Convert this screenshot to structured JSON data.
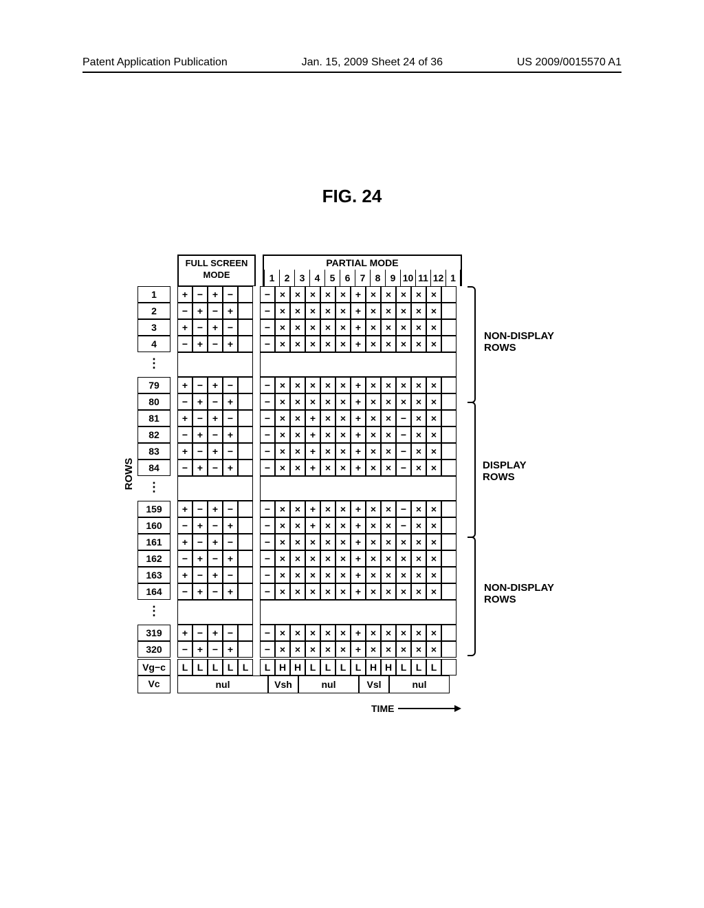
{
  "header": {
    "left": "Patent Application Publication",
    "center": "Jan. 15, 2009  Sheet 24 of 36",
    "right": "US 2009/0015570 A1"
  },
  "figure": {
    "title": "FIG. 24",
    "mode_headers": {
      "full_screen": "FULL SCREEN MODE",
      "partial": "PARTIAL MODE"
    },
    "full_screen_cols": 5,
    "partial_cols": [
      "1",
      "2",
      "3",
      "4",
      "5",
      "6",
      "7",
      "8",
      "9",
      "10",
      "11",
      "12",
      "1"
    ],
    "rows_label": "ROWS",
    "section_labels": {
      "nondisplay_top": "NON-DISPLAY ROWS",
      "display": "DISPLAY ROWS",
      "nondisplay_bottom": "NON-DISPLAY ROWS"
    },
    "rows": [
      {
        "label": "1",
        "fs": [
          "+",
          "−",
          "+",
          "−",
          ""
        ],
        "pm": [
          "−",
          "×",
          "×",
          "×",
          "×",
          "×",
          "+",
          "×",
          "×",
          "×",
          "×",
          "×",
          ""
        ]
      },
      {
        "label": "2",
        "fs": [
          "−",
          "+",
          "−",
          "+",
          ""
        ],
        "pm": [
          "−",
          "×",
          "×",
          "×",
          "×",
          "×",
          "+",
          "×",
          "×",
          "×",
          "×",
          "×",
          ""
        ]
      },
      {
        "label": "3",
        "fs": [
          "+",
          "−",
          "+",
          "−",
          ""
        ],
        "pm": [
          "−",
          "×",
          "×",
          "×",
          "×",
          "×",
          "+",
          "×",
          "×",
          "×",
          "×",
          "×",
          ""
        ]
      },
      {
        "label": "4",
        "fs": [
          "−",
          "+",
          "−",
          "+",
          ""
        ],
        "pm": [
          "−",
          "×",
          "×",
          "×",
          "×",
          "×",
          "+",
          "×",
          "×",
          "×",
          "×",
          "×",
          ""
        ]
      },
      {
        "label": "⋮",
        "vdots": true
      },
      {
        "label": "79",
        "fs": [
          "+",
          "−",
          "+",
          "−",
          ""
        ],
        "pm": [
          "−",
          "×",
          "×",
          "×",
          "×",
          "×",
          "+",
          "×",
          "×",
          "×",
          "×",
          "×",
          ""
        ]
      },
      {
        "label": "80",
        "fs": [
          "−",
          "+",
          "−",
          "+",
          ""
        ],
        "pm": [
          "−",
          "×",
          "×",
          "×",
          "×",
          "×",
          "+",
          "×",
          "×",
          "×",
          "×",
          "×",
          ""
        ]
      },
      {
        "label": "81",
        "fs": [
          "+",
          "−",
          "+",
          "−",
          ""
        ],
        "pm": [
          "−",
          "×",
          "×",
          "+",
          "×",
          "×",
          "+",
          "×",
          "×",
          "−",
          "×",
          "×",
          ""
        ]
      },
      {
        "label": "82",
        "fs": [
          "−",
          "+",
          "−",
          "+",
          ""
        ],
        "pm": [
          "−",
          "×",
          "×",
          "+",
          "×",
          "×",
          "+",
          "×",
          "×",
          "−",
          "×",
          "×",
          ""
        ]
      },
      {
        "label": "83",
        "fs": [
          "+",
          "−",
          "+",
          "−",
          ""
        ],
        "pm": [
          "−",
          "×",
          "×",
          "+",
          "×",
          "×",
          "+",
          "×",
          "×",
          "−",
          "×",
          "×",
          ""
        ]
      },
      {
        "label": "84",
        "fs": [
          "−",
          "+",
          "−",
          "+",
          ""
        ],
        "pm": [
          "−",
          "×",
          "×",
          "+",
          "×",
          "×",
          "+",
          "×",
          "×",
          "−",
          "×",
          "×",
          ""
        ]
      },
      {
        "label": "⋮",
        "vdots": true
      },
      {
        "label": "159",
        "fs": [
          "+",
          "−",
          "+",
          "−",
          ""
        ],
        "pm": [
          "−",
          "×",
          "×",
          "+",
          "×",
          "×",
          "+",
          "×",
          "×",
          "−",
          "×",
          "×",
          ""
        ]
      },
      {
        "label": "160",
        "fs": [
          "−",
          "+",
          "−",
          "+",
          ""
        ],
        "pm": [
          "−",
          "×",
          "×",
          "+",
          "×",
          "×",
          "+",
          "×",
          "×",
          "−",
          "×",
          "×",
          ""
        ]
      },
      {
        "label": "161",
        "fs": [
          "+",
          "−",
          "+",
          "−",
          ""
        ],
        "pm": [
          "−",
          "×",
          "×",
          "×",
          "×",
          "×",
          "+",
          "×",
          "×",
          "×",
          "×",
          "×",
          ""
        ]
      },
      {
        "label": "162",
        "fs": [
          "−",
          "+",
          "−",
          "+",
          ""
        ],
        "pm": [
          "−",
          "×",
          "×",
          "×",
          "×",
          "×",
          "+",
          "×",
          "×",
          "×",
          "×",
          "×",
          ""
        ]
      },
      {
        "label": "163",
        "fs": [
          "+",
          "−",
          "+",
          "−",
          ""
        ],
        "pm": [
          "−",
          "×",
          "×",
          "×",
          "×",
          "×",
          "+",
          "×",
          "×",
          "×",
          "×",
          "×",
          ""
        ]
      },
      {
        "label": "164",
        "fs": [
          "−",
          "+",
          "−",
          "+",
          ""
        ],
        "pm": [
          "−",
          "×",
          "×",
          "×",
          "×",
          "×",
          "+",
          "×",
          "×",
          "×",
          "×",
          "×",
          ""
        ]
      },
      {
        "label": "⋮",
        "vdots": true
      },
      {
        "label": "319",
        "fs": [
          "+",
          "−",
          "+",
          "−",
          ""
        ],
        "pm": [
          "−",
          "×",
          "×",
          "×",
          "×",
          "×",
          "+",
          "×",
          "×",
          "×",
          "×",
          "×",
          ""
        ]
      },
      {
        "label": "320",
        "fs": [
          "−",
          "+",
          "−",
          "+",
          ""
        ],
        "pm": [
          "−",
          "×",
          "×",
          "×",
          "×",
          "×",
          "+",
          "×",
          "×",
          "×",
          "×",
          "×",
          ""
        ]
      }
    ],
    "footer": {
      "vgc": {
        "label": "Vg−c",
        "fs": [
          "L",
          "L",
          "L",
          "L",
          "L"
        ],
        "pm": [
          "L",
          "H",
          "H",
          "L",
          "L",
          "L",
          "L",
          "H",
          "H",
          "L",
          "L",
          "L",
          ""
        ]
      },
      "vc": {
        "label": "Vc",
        "segments": [
          {
            "text": "nul",
            "span": 6
          },
          {
            "text": "Vsh",
            "span": 2
          },
          {
            "text": "nul",
            "span": 4
          },
          {
            "text": "Vsl",
            "span": 2
          },
          {
            "text": "nul",
            "span": 4
          }
        ]
      }
    },
    "time_label": "TIME"
  }
}
